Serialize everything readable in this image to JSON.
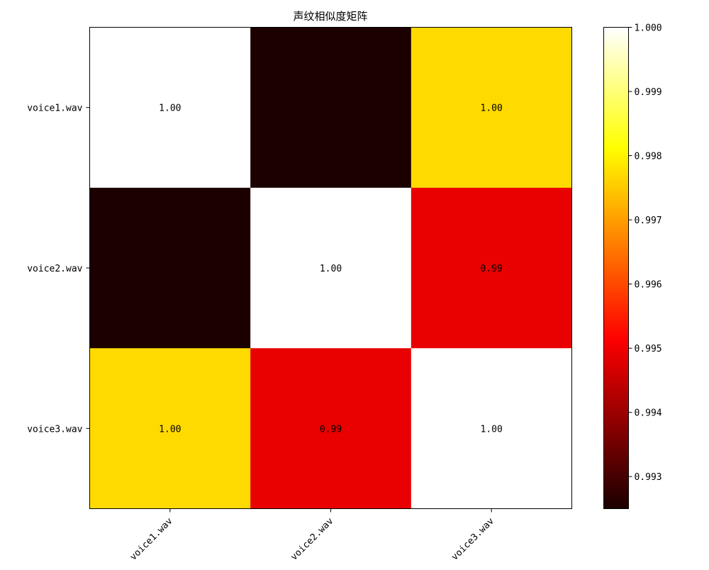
{
  "chart_data": {
    "type": "heatmap",
    "title": "声纹相似度矩阵",
    "xlabel": "",
    "ylabel": "",
    "x_categories": [
      "voice1.wav",
      "voice2.wav",
      "voice3.wav"
    ],
    "y_categories": [
      "voice1.wav",
      "voice2.wav",
      "voice3.wav"
    ],
    "values": [
      [
        1.0,
        0.9925,
        0.9977
      ],
      [
        0.9925,
        1.0,
        0.9949
      ],
      [
        0.9977,
        0.9949,
        1.0
      ]
    ],
    "cell_labels": [
      [
        "1.00",
        "",
        "1.00"
      ],
      [
        "",
        "1.00",
        "0.99"
      ],
      [
        "1.00",
        "0.99",
        "1.00"
      ]
    ],
    "colormap": "hot",
    "colorbar": {
      "vmin": 0.9925,
      "vmax": 1.0,
      "ticks": [
        0.993,
        0.994,
        0.995,
        0.996,
        0.997,
        0.998,
        0.999,
        1.0
      ],
      "tick_labels": [
        "0.993",
        "0.994",
        "0.995",
        "0.996",
        "0.997",
        "0.998",
        "0.999",
        "1.000"
      ]
    },
    "x_tick_rotation": "45-degrees",
    "grid": false,
    "legend": "none"
  }
}
